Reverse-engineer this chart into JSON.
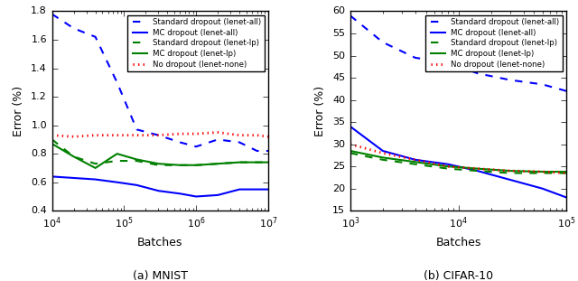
{
  "mnist": {
    "xlim": [
      10000.0,
      10000000.0
    ],
    "ylim": [
      0.4,
      1.8
    ],
    "xlabel": "Batches",
    "ylabel": "Error (%)",
    "title": "(a) MNIST",
    "series": {
      "std_all": {
        "label": "Standard dropout (lenet-all)",
        "color": "blue",
        "linestyle": "--",
        "x": [
          10000,
          20000,
          40000,
          80000,
          150000,
          300000,
          600000,
          1000000,
          2000000,
          4000000,
          7000000,
          10000000
        ],
        "y": [
          1.78,
          1.68,
          1.62,
          1.3,
          0.97,
          0.93,
          0.88,
          0.85,
          0.9,
          0.88,
          0.82,
          0.82
        ]
      },
      "mc_all": {
        "label": "MC dropout (lenet-all)",
        "color": "blue",
        "linestyle": "-",
        "x": [
          10000,
          20000,
          40000,
          80000,
          150000,
          300000,
          600000,
          1000000,
          2000000,
          4000000,
          7000000,
          10000000
        ],
        "y": [
          0.64,
          0.63,
          0.62,
          0.6,
          0.58,
          0.54,
          0.52,
          0.5,
          0.51,
          0.55,
          0.55,
          0.55
        ]
      },
      "std_lp": {
        "label": "Standard dropout (lenet-lp)",
        "color": "green",
        "linestyle": "--",
        "x": [
          10000,
          20000,
          40000,
          80000,
          150000,
          300000,
          600000,
          1000000,
          2000000,
          4000000,
          7000000,
          10000000
        ],
        "y": [
          0.9,
          0.78,
          0.73,
          0.75,
          0.75,
          0.72,
          0.72,
          0.72,
          0.73,
          0.74,
          0.74,
          0.74
        ]
      },
      "mc_lp": {
        "label": "MC dropout (lenet-lp)",
        "color": "green",
        "linestyle": "-",
        "x": [
          10000,
          20000,
          40000,
          80000,
          150000,
          300000,
          600000,
          1000000,
          2000000,
          4000000,
          7000000,
          10000000
        ],
        "y": [
          0.87,
          0.78,
          0.7,
          0.8,
          0.76,
          0.73,
          0.72,
          0.72,
          0.73,
          0.74,
          0.74,
          0.74
        ]
      },
      "no_drop": {
        "label": "No dropout (lenet-none)",
        "color": "red",
        "linestyle": ":",
        "x": [
          10000,
          20000,
          40000,
          80000,
          150000,
          300000,
          600000,
          1000000,
          2000000,
          4000000,
          7000000,
          10000000
        ],
        "y": [
          0.93,
          0.92,
          0.93,
          0.93,
          0.93,
          0.93,
          0.94,
          0.94,
          0.95,
          0.93,
          0.93,
          0.92
        ]
      }
    }
  },
  "cifar": {
    "xlim": [
      1000.0,
      100000.0
    ],
    "ylim": [
      15,
      60
    ],
    "xlabel": "Batches",
    "ylabel": "Error (%)",
    "title": "(b) CIFAR-10",
    "series": {
      "std_all": {
        "label": "Standard dropout (lenet-all)",
        "color": "blue",
        "linestyle": "--",
        "x": [
          1000,
          2000,
          4000,
          8000,
          15000,
          30000,
          60000,
          100000
        ],
        "y": [
          59.0,
          53.0,
          49.5,
          48.5,
          46.0,
          44.5,
          43.5,
          42.0
        ]
      },
      "mc_all": {
        "label": "MC dropout (lenet-all)",
        "color": "blue",
        "linestyle": "-",
        "x": [
          1000,
          2000,
          4000,
          8000,
          15000,
          30000,
          60000,
          100000
        ],
        "y": [
          34.0,
          28.5,
          26.5,
          25.5,
          24.0,
          22.0,
          20.0,
          18.0
        ]
      },
      "std_lp": {
        "label": "Standard dropout (lenet-lp)",
        "color": "green",
        "linestyle": "--",
        "x": [
          1000,
          2000,
          4000,
          8000,
          15000,
          30000,
          60000,
          100000
        ],
        "y": [
          28.0,
          26.5,
          25.5,
          24.5,
          24.0,
          23.5,
          23.5,
          23.5
        ]
      },
      "mc_lp": {
        "label": "MC dropout (lenet-lp)",
        "color": "green",
        "linestyle": "-",
        "x": [
          1000,
          2000,
          4000,
          8000,
          15000,
          30000,
          60000,
          100000
        ],
        "y": [
          28.5,
          27.0,
          26.0,
          25.0,
          24.5,
          24.0,
          23.8,
          23.8
        ]
      },
      "no_drop": {
        "label": "No dropout (lenet-none)",
        "color": "red",
        "linestyle": ":",
        "x": [
          1000,
          2000,
          4000,
          8000,
          15000,
          30000,
          60000,
          100000
        ],
        "y": [
          30.0,
          28.0,
          26.5,
          25.0,
          24.5,
          24.0,
          23.8,
          23.5
        ]
      }
    }
  },
  "legend_order": [
    "std_all",
    "mc_all",
    "std_lp",
    "mc_lp",
    "no_drop"
  ],
  "figsize": [
    6.4,
    3.11
  ],
  "dpi": 100
}
